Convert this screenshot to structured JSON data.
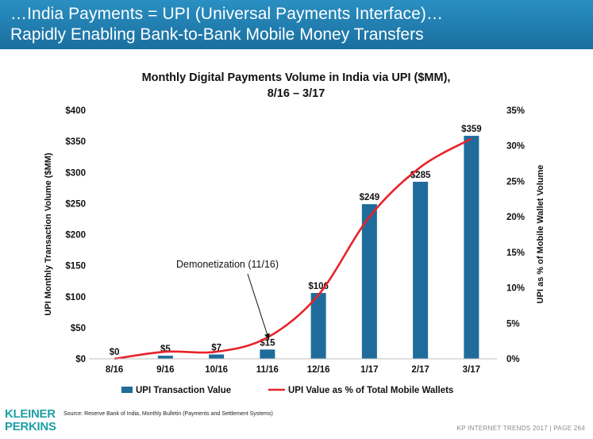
{
  "header": {
    "line1": "…India Payments = UPI (Universal Payments Interface)…",
    "line2": "Rapidly Enabling Bank-to-Bank Mobile Money Transfers"
  },
  "colors": {
    "header_bg": "#1f7fb3",
    "bar": "#1f6c9c",
    "line": "#e8222a",
    "logo": "#1ea0a6"
  },
  "chart_data": {
    "type": "bar",
    "title": "Monthly Digital Payments Volume in India via UPI ($MM),",
    "subtitle": "8/16 – 3/17",
    "categories": [
      "8/16",
      "9/16",
      "10/16",
      "11/16",
      "12/16",
      "1/17",
      "2/17",
      "3/17"
    ],
    "ylabel": "UPI Monthly Transaction Volume ($MM)",
    "y2label": "UPI as % of Mobile Wallet Volume",
    "ylim": [
      0,
      400
    ],
    "y2lim": [
      0,
      35
    ],
    "yticks": [
      "$0",
      "$50",
      "$100",
      "$150",
      "$200",
      "$250",
      "$300",
      "$350",
      "$400"
    ],
    "y2ticks": [
      "0%",
      "5%",
      "10%",
      "15%",
      "20%",
      "25%",
      "30%",
      "35%"
    ],
    "series": [
      {
        "name": "UPI Transaction Value",
        "type": "bar",
        "values": [
          0,
          5,
          7,
          15,
          106,
          249,
          285,
          359
        ],
        "labels": [
          "$0",
          "$5",
          "$7",
          "$15",
          "$106",
          "$249",
          "$285",
          "$359"
        ]
      },
      {
        "name": "UPI Value as % of Total Mobile Wallets",
        "type": "line",
        "axis": "right",
        "values": [
          0,
          1,
          1,
          3,
          9,
          20,
          27,
          31
        ]
      }
    ],
    "annotation": {
      "text": "Demonetization (11/16)",
      "category": "11/16"
    },
    "legend": "bottom",
    "grid": false
  },
  "footer": {
    "source": "Source: Reserve Bank of India, Monthly Bulletin (Payments and Settlement Systems)",
    "logo_line1": "KLEINER",
    "logo_line2": "PERKINS",
    "page_ref": "KP INTERNET TRENDS 2017  |  PAGE 264"
  }
}
